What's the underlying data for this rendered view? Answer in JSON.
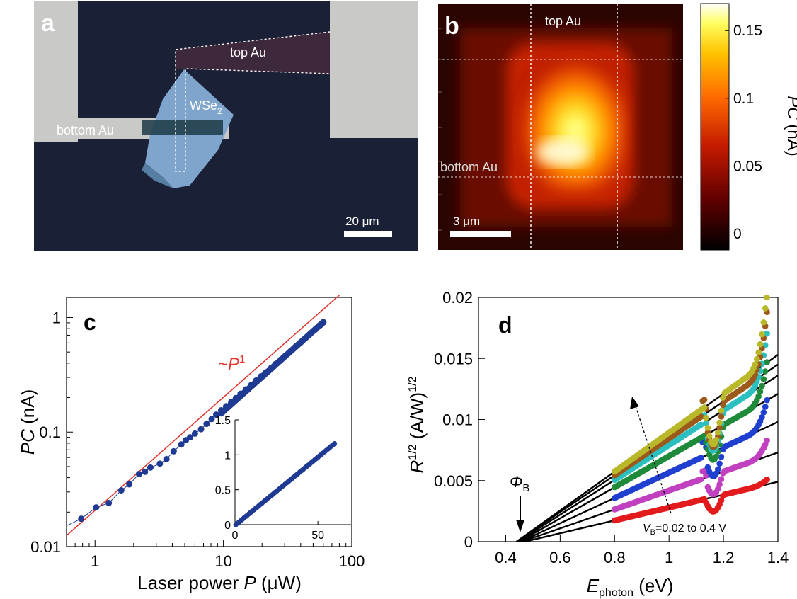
{
  "panels": {
    "a": {
      "letter": "a",
      "labels": {
        "top": "top Au",
        "flake_main": "WSe",
        "flake_sub": "2",
        "bottom": "bottom Au"
      },
      "scalebar": "20 μm",
      "colors": {
        "background": "#1a2035",
        "electrode": "#c9c9c7",
        "flake": "#7fa5cc",
        "flake_dark": "#567ea3"
      }
    },
    "b": {
      "letter": "b",
      "labels": {
        "top": "top Au",
        "bottom": "bottom Au"
      },
      "scalebar": "3 μm",
      "colorbar": {
        "ticks": [
          "0.15",
          "0.1",
          "0.05",
          "0"
        ],
        "tick_values": [
          0.15,
          0.1,
          0.05,
          0
        ],
        "range": [
          -0.012,
          0.17
        ],
        "label_main": "PC",
        "label_unit": " (nA)",
        "colormap": "hot"
      }
    },
    "c": {
      "letter": "c",
      "annotation": {
        "prefix": "~",
        "var": "P",
        "exp": "1"
      },
      "ylabel": {
        "var": "PC",
        "unit": " (nA)"
      },
      "xlabel": {
        "text": "Laser power ",
        "var": "P",
        "unit": " (μW)"
      },
      "xticks": [
        "1",
        "10",
        "100"
      ],
      "yticks": [
        "0.01",
        "0.1",
        "1"
      ],
      "inset": {
        "xticks": [
          "0",
          "50"
        ],
        "yticks": [
          "0",
          "0.5",
          "1",
          "1.5"
        ]
      },
      "colors": {
        "markers": "#1f3a93",
        "fit": "#e3312b"
      }
    },
    "d": {
      "letter": "d",
      "ylabel": {
        "var": "R",
        "sup": "1/2",
        "unit": " (A/W)",
        "unit_sup": "1/2"
      },
      "xlabel": {
        "var": "E",
        "sub": "photon",
        "unit": " (eV)"
      },
      "xticks": [
        "0.4",
        "0.6",
        "0.8",
        "1",
        "1.2",
        "1.4"
      ],
      "yticks": [
        "0",
        "0.005",
        "0.01",
        "0.015",
        "0.02"
      ],
      "phi": {
        "var": "Φ",
        "sub": "B"
      },
      "vb": {
        "var": "V",
        "sub": "B",
        "text": "=0.02 to 0.4 V"
      }
    }
  },
  "chart_data": [
    {
      "type": "scatter",
      "panel": "c",
      "xscale": "log",
      "yscale": "log",
      "xlim": [
        0.6,
        100
      ],
      "ylim": [
        0.01,
        1.5
      ],
      "xlabel": "Laser power P (μW)",
      "ylabel": "PC (nA)",
      "series": [
        {
          "values_x": [
            0.78,
            1.02,
            1.28,
            1.6,
            1.85,
            2.2,
            2.45,
            2.7,
            3.2,
            3.6,
            4.1,
            4.7,
            5.1,
            5.5,
            6.0,
            6.7,
            7.4,
            8.1,
            8.8,
            9.6,
            10.5,
            11.5,
            12.5,
            13.6,
            15.0,
            16.5,
            18.0,
            19.6,
            21.5,
            23.5,
            25.5,
            28.0,
            30.5,
            33.5,
            36.5,
            40.0,
            43.5,
            47.5,
            52.0,
            57.0,
            60.0
          ],
          "values_y": [
            0.0175,
            0.022,
            0.024,
            0.031,
            0.035,
            0.043,
            0.045,
            0.049,
            0.053,
            0.058,
            0.068,
            0.078,
            0.085,
            0.09,
            0.097,
            0.106,
            0.118,
            0.13,
            0.142,
            0.155,
            0.168,
            0.183,
            0.198,
            0.216,
            0.236,
            0.258,
            0.282,
            0.306,
            0.333,
            0.362,
            0.393,
            0.429,
            0.467,
            0.51,
            0.556,
            0.606,
            0.66,
            0.72,
            0.787,
            0.86,
            0.905
          ]
        }
      ],
      "fit": {
        "exponent": 1,
        "x": [
          0.6,
          80
        ],
        "y": [
          0.0125,
          1.57
        ]
      },
      "inset": {
        "type": "scatter",
        "xlim": [
          0,
          70
        ],
        "ylim": [
          0,
          1.5
        ],
        "x": [
          0.5,
          60
        ],
        "y": [
          0.0,
          1.16
        ]
      }
    },
    {
      "type": "line",
      "panel": "d",
      "xlim": [
        0.3,
        1.4
      ],
      "ylim": [
        0,
        0.02
      ],
      "xlabel": "E_photon (eV)",
      "ylabel": "R^1/2 (A/W)^1/2",
      "series": [
        {
          "color": "#e31a1c",
          "x0": 0.47,
          "y_end": 0.0049
        },
        {
          "color": "#c040c0",
          "x0": 0.46,
          "y_end": 0.0073
        },
        {
          "color": "#1f3fd0",
          "x0": 0.455,
          "y_end": 0.0098
        },
        {
          "color": "#1e8a3a",
          "x0": 0.45,
          "y_end": 0.0121
        },
        {
          "color": "#2bbfbf",
          "x0": 0.445,
          "y_end": 0.0136
        },
        {
          "color": "#9b5a1b",
          "x0": 0.44,
          "y_end": 0.0145
        },
        {
          "color": "#b8b82a",
          "x0": 0.44,
          "y_end": 0.0153
        }
      ],
      "annotations": {
        "phi_B": 0.45,
        "arrow": "increasing V_B"
      }
    }
  ]
}
